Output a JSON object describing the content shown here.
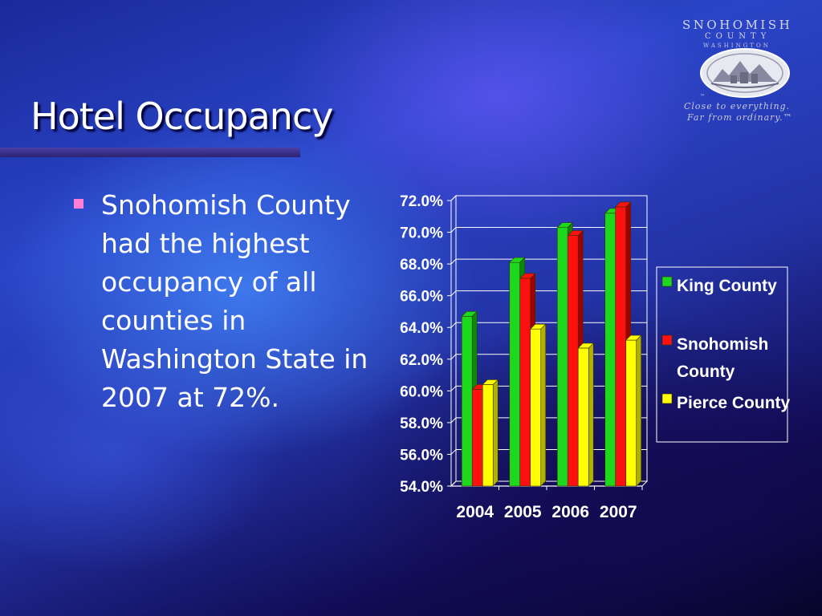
{
  "slide": {
    "title": "Hotel Occupancy",
    "bullet_text": "Snohomish County had the highest occupancy of all counties in Washington State in 2007 at 72%.",
    "logo": {
      "name": "SNOHOMISH",
      "sub1": "COUNTY",
      "sub2": "WASHINGTON",
      "tagline1": "Close to everything.",
      "tagline2": "Far from ordinary.™",
      "tm": "™"
    }
  },
  "chart_data": {
    "type": "bar",
    "categories": [
      "2004",
      "2005",
      "2006",
      "2007"
    ],
    "series": [
      {
        "name": "King County",
        "values": [
          64.7,
          68.1,
          70.3,
          71.2
        ],
        "color": "#1ed81e",
        "side": "#0a8a0a"
      },
      {
        "name": "Snohomish County",
        "values": [
          60.1,
          67.1,
          69.8,
          71.6
        ],
        "color": "#ff1010",
        "side": "#a00000"
      },
      {
        "name": "Pierce County",
        "values": [
          60.4,
          63.9,
          62.7,
          63.2
        ],
        "color": "#ffff00",
        "side": "#b0b000"
      }
    ],
    "legend_lines": [
      [
        "King County"
      ],
      [
        "Snohomish",
        "County"
      ],
      [
        "Pierce County"
      ]
    ],
    "yticks": [
      "54.0%",
      "56.0%",
      "58.0%",
      "60.0%",
      "62.0%",
      "64.0%",
      "66.0%",
      "68.0%",
      "70.0%",
      "72.0%"
    ],
    "ylim": [
      54,
      72
    ],
    "grid": true,
    "legend_position": "right"
  }
}
